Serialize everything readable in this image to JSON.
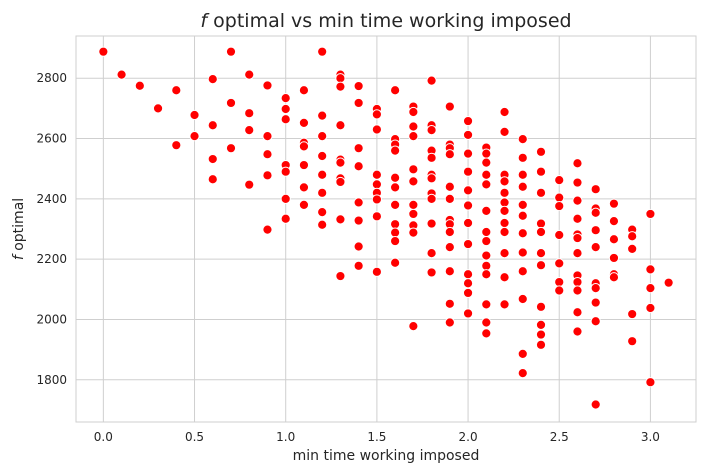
{
  "chart_data": {
    "type": "scatter",
    "title": "f optimal vs min time working imposed",
    "title_parts": {
      "italic": "f",
      "rest": " optimal vs min time working imposed"
    },
    "xlabel": "min time working imposed",
    "ylabel": "f optimal",
    "ylabel_parts": {
      "italic": "f",
      "rest": " optimal"
    },
    "xlim": [
      -0.15,
      3.25
    ],
    "ylim": [
      1660,
      2940
    ],
    "xticks": [
      0.0,
      0.5,
      1.0,
      1.5,
      2.0,
      2.5,
      3.0
    ],
    "xtick_labels": [
      "0.0",
      "0.5",
      "1.0",
      "1.5",
      "2.0",
      "2.5",
      "3.0"
    ],
    "yticks": [
      1800,
      2000,
      2200,
      2400,
      2600,
      2800
    ],
    "ytick_labels": [
      "1800",
      "2000",
      "2200",
      "2400",
      "2600",
      "2800"
    ],
    "grid": true,
    "color": "#ff0000",
    "points": [
      [
        0.0,
        2888
      ],
      [
        0.1,
        2812
      ],
      [
        0.2,
        2775
      ],
      [
        0.3,
        2700
      ],
      [
        0.4,
        2760
      ],
      [
        0.4,
        2578
      ],
      [
        0.5,
        2678
      ],
      [
        0.5,
        2608
      ],
      [
        0.6,
        2797
      ],
      [
        0.6,
        2644
      ],
      [
        0.6,
        2532
      ],
      [
        0.6,
        2465
      ],
      [
        0.7,
        2888
      ],
      [
        0.7,
        2718
      ],
      [
        0.7,
        2568
      ],
      [
        0.8,
        2812
      ],
      [
        0.8,
        2684
      ],
      [
        0.8,
        2628
      ],
      [
        0.8,
        2447
      ],
      [
        0.9,
        2776
      ],
      [
        0.9,
        2608
      ],
      [
        0.9,
        2548
      ],
      [
        0.9,
        2478
      ],
      [
        0.9,
        2298
      ],
      [
        1.0,
        2734
      ],
      [
        1.0,
        2698
      ],
      [
        1.0,
        2664
      ],
      [
        1.0,
        2512
      ],
      [
        1.0,
        2490
      ],
      [
        1.0,
        2400
      ],
      [
        1.0,
        2334
      ],
      [
        1.1,
        2760
      ],
      [
        1.1,
        2652
      ],
      [
        1.1,
        2586
      ],
      [
        1.1,
        2574
      ],
      [
        1.1,
        2512
      ],
      [
        1.1,
        2438
      ],
      [
        1.1,
        2380
      ],
      [
        1.2,
        2888
      ],
      [
        1.2,
        2676
      ],
      [
        1.2,
        2608
      ],
      [
        1.2,
        2542
      ],
      [
        1.2,
        2480
      ],
      [
        1.2,
        2420
      ],
      [
        1.2,
        2356
      ],
      [
        1.2,
        2314
      ],
      [
        1.3,
        2812
      ],
      [
        1.3,
        2800
      ],
      [
        1.3,
        2772
      ],
      [
        1.3,
        2644
      ],
      [
        1.3,
        2530
      ],
      [
        1.3,
        2520
      ],
      [
        1.3,
        2468
      ],
      [
        1.3,
        2456
      ],
      [
        1.3,
        2332
      ],
      [
        1.3,
        2144
      ],
      [
        1.4,
        2774
      ],
      [
        1.4,
        2718
      ],
      [
        1.4,
        2568
      ],
      [
        1.4,
        2508
      ],
      [
        1.4,
        2388
      ],
      [
        1.4,
        2328
      ],
      [
        1.4,
        2242
      ],
      [
        1.4,
        2178
      ],
      [
        1.5,
        2698
      ],
      [
        1.5,
        2680
      ],
      [
        1.5,
        2630
      ],
      [
        1.5,
        2480
      ],
      [
        1.5,
        2448
      ],
      [
        1.5,
        2420
      ],
      [
        1.5,
        2398
      ],
      [
        1.5,
        2342
      ],
      [
        1.5,
        2158
      ],
      [
        1.6,
        2760
      ],
      [
        1.6,
        2598
      ],
      [
        1.6,
        2580
      ],
      [
        1.6,
        2560
      ],
      [
        1.6,
        2470
      ],
      [
        1.6,
        2438
      ],
      [
        1.6,
        2380
      ],
      [
        1.6,
        2316
      ],
      [
        1.6,
        2288
      ],
      [
        1.6,
        2260
      ],
      [
        1.6,
        2188
      ],
      [
        1.7,
        2706
      ],
      [
        1.7,
        2688
      ],
      [
        1.7,
        2640
      ],
      [
        1.7,
        2608
      ],
      [
        1.7,
        2498
      ],
      [
        1.7,
        2458
      ],
      [
        1.7,
        2380
      ],
      [
        1.7,
        2350
      ],
      [
        1.7,
        2312
      ],
      [
        1.7,
        2288
      ],
      [
        1.7,
        1978
      ],
      [
        1.8,
        2792
      ],
      [
        1.8,
        2644
      ],
      [
        1.8,
        2628
      ],
      [
        1.8,
        2560
      ],
      [
        1.8,
        2536
      ],
      [
        1.8,
        2480
      ],
      [
        1.8,
        2468
      ],
      [
        1.8,
        2418
      ],
      [
        1.8,
        2400
      ],
      [
        1.8,
        2318
      ],
      [
        1.8,
        2220
      ],
      [
        1.8,
        2156
      ],
      [
        1.9,
        2706
      ],
      [
        1.9,
        2580
      ],
      [
        1.9,
        2568
      ],
      [
        1.9,
        2548
      ],
      [
        1.9,
        2440
      ],
      [
        1.9,
        2400
      ],
      [
        1.9,
        2330
      ],
      [
        1.9,
        2316
      ],
      [
        1.9,
        2290
      ],
      [
        1.9,
        2240
      ],
      [
        1.9,
        2160
      ],
      [
        1.9,
        2052
      ],
      [
        1.9,
        1990
      ],
      [
        2.0,
        2658
      ],
      [
        2.0,
        2612
      ],
      [
        2.0,
        2550
      ],
      [
        2.0,
        2490
      ],
      [
        2.0,
        2428
      ],
      [
        2.0,
        2378
      ],
      [
        2.0,
        2320
      ],
      [
        2.0,
        2250
      ],
      [
        2.0,
        2150
      ],
      [
        2.0,
        2120
      ],
      [
        2.0,
        2088
      ],
      [
        2.0,
        2020
      ],
      [
        2.1,
        2570
      ],
      [
        2.1,
        2550
      ],
      [
        2.1,
        2520
      ],
      [
        2.1,
        2480
      ],
      [
        2.1,
        2448
      ],
      [
        2.1,
        2360
      ],
      [
        2.1,
        2290
      ],
      [
        2.1,
        2260
      ],
      [
        2.1,
        2212
      ],
      [
        2.1,
        2178
      ],
      [
        2.1,
        2150
      ],
      [
        2.1,
        2050
      ],
      [
        2.1,
        1990
      ],
      [
        2.1,
        1954
      ],
      [
        2.2,
        2688
      ],
      [
        2.2,
        2622
      ],
      [
        2.2,
        2480
      ],
      [
        2.2,
        2458
      ],
      [
        2.2,
        2420
      ],
      [
        2.2,
        2388
      ],
      [
        2.2,
        2360
      ],
      [
        2.2,
        2320
      ],
      [
        2.2,
        2290
      ],
      [
        2.2,
        2220
      ],
      [
        2.2,
        2140
      ],
      [
        2.2,
        2050
      ],
      [
        2.3,
        2598
      ],
      [
        2.3,
        2536
      ],
      [
        2.3,
        2480
      ],
      [
        2.3,
        2440
      ],
      [
        2.3,
        2380
      ],
      [
        2.3,
        2344
      ],
      [
        2.3,
        2286
      ],
      [
        2.3,
        2222
      ],
      [
        2.3,
        2160
      ],
      [
        2.3,
        2068
      ],
      [
        2.3,
        1886
      ],
      [
        2.3,
        1822
      ],
      [
        2.4,
        2556
      ],
      [
        2.4,
        2490
      ],
      [
        2.4,
        2420
      ],
      [
        2.4,
        2318
      ],
      [
        2.4,
        2290
      ],
      [
        2.4,
        2220
      ],
      [
        2.4,
        2180
      ],
      [
        2.4,
        2042
      ],
      [
        2.4,
        1982
      ],
      [
        2.4,
        1950
      ],
      [
        2.4,
        1916
      ],
      [
        2.5,
        2462
      ],
      [
        2.5,
        2404
      ],
      [
        2.5,
        2376
      ],
      [
        2.5,
        2280
      ],
      [
        2.5,
        2186
      ],
      [
        2.5,
        2124
      ],
      [
        2.5,
        2096
      ],
      [
        2.6,
        2518
      ],
      [
        2.6,
        2454
      ],
      [
        2.6,
        2394
      ],
      [
        2.6,
        2334
      ],
      [
        2.6,
        2282
      ],
      [
        2.6,
        2270
      ],
      [
        2.6,
        2220
      ],
      [
        2.6,
        2146
      ],
      [
        2.6,
        2124
      ],
      [
        2.6,
        2096
      ],
      [
        2.6,
        2024
      ],
      [
        2.6,
        1960
      ],
      [
        2.7,
        2432
      ],
      [
        2.7,
        2368
      ],
      [
        2.7,
        2354
      ],
      [
        2.7,
        2296
      ],
      [
        2.7,
        2240
      ],
      [
        2.7,
        2120
      ],
      [
        2.7,
        2104
      ],
      [
        2.7,
        2056
      ],
      [
        2.7,
        1994
      ],
      [
        2.7,
        1718
      ],
      [
        2.8,
        2384
      ],
      [
        2.8,
        2326
      ],
      [
        2.8,
        2266
      ],
      [
        2.8,
        2204
      ],
      [
        2.8,
        2150
      ],
      [
        2.8,
        2140
      ],
      [
        2.9,
        2298
      ],
      [
        2.9,
        2276
      ],
      [
        2.9,
        2234
      ],
      [
        2.9,
        2018
      ],
      [
        2.9,
        1928
      ],
      [
        3.0,
        2350
      ],
      [
        3.0,
        2166
      ],
      [
        3.0,
        2104
      ],
      [
        3.0,
        2038
      ],
      [
        3.0,
        1792
      ],
      [
        3.1,
        2122
      ]
    ]
  }
}
